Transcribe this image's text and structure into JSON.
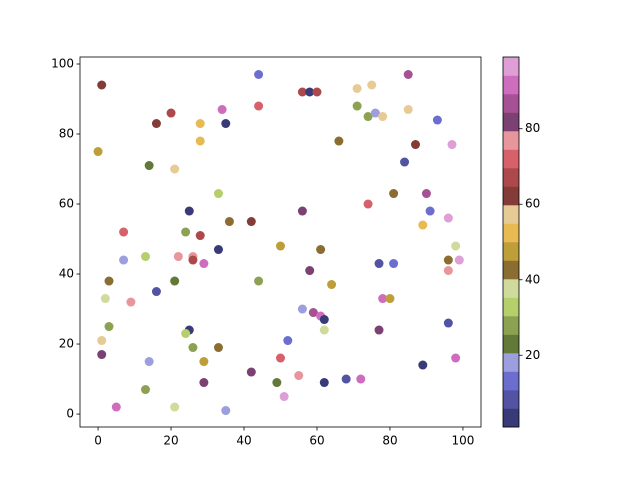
{
  "chart_data": {
    "type": "scatter",
    "x": [
      1,
      44,
      85,
      56,
      58,
      60,
      71,
      75,
      20,
      16,
      28,
      34,
      35,
      44,
      71,
      74,
      76,
      78,
      85,
      93,
      0,
      14,
      21,
      28,
      66,
      84,
      87,
      97,
      33,
      25,
      36,
      42,
      56,
      74,
      81,
      90,
      91,
      89,
      96,
      7,
      24,
      28,
      33,
      50,
      61,
      7,
      13,
      22,
      26,
      26,
      29,
      3,
      21,
      44,
      58,
      64,
      77,
      81,
      78,
      80,
      96,
      96,
      98,
      99,
      2,
      9,
      16,
      3,
      1,
      25,
      24,
      26,
      33,
      29,
      52,
      56,
      59,
      61,
      62,
      62,
      77,
      96,
      1,
      14,
      50,
      89,
      98,
      42,
      55,
      49,
      29,
      13,
      62,
      68,
      72,
      5,
      21,
      35,
      51
    ],
    "y": [
      94,
      97,
      97,
      92,
      92,
      92,
      93,
      94,
      86,
      83,
      83,
      87,
      83,
      88,
      88,
      85,
      86,
      85,
      87,
      84,
      75,
      71,
      70,
      78,
      78,
      72,
      77,
      77,
      63,
      58,
      55,
      55,
      58,
      60,
      63,
      63,
      58,
      54,
      56,
      52,
      52,
      51,
      47,
      48,
      47,
      44,
      45,
      45,
      45,
      44,
      43,
      38,
      38,
      38,
      41,
      37,
      43,
      43,
      33,
      33,
      44,
      41,
      48,
      44,
      33,
      32,
      35,
      25,
      21,
      24,
      23,
      19,
      19,
      15,
      21,
      30,
      29,
      28,
      27,
      24,
      24,
      26,
      17,
      15,
      16,
      14,
      16,
      12,
      11,
      9,
      9,
      7,
      9,
      10,
      10,
      2,
      2,
      1,
      5
    ],
    "c": [
      62,
      13,
      87,
      67,
      3,
      67,
      57,
      57,
      67,
      62,
      53,
      92,
      3,
      72,
      28,
      28,
      18,
      57,
      57,
      13,
      48,
      23,
      57,
      53,
      43,
      8,
      62,
      97,
      33,
      3,
      43,
      62,
      82,
      72,
      43,
      87,
      13,
      53,
      97,
      72,
      28,
      67,
      3,
      48,
      43,
      18,
      33,
      77,
      77,
      67,
      92,
      43,
      23,
      28,
      82,
      48,
      8,
      13,
      92,
      48,
      43,
      77,
      38,
      97,
      38,
      77,
      8,
      28,
      57,
      3,
      33,
      28,
      43,
      48,
      13,
      18,
      87,
      92,
      3,
      38,
      82,
      8,
      82,
      18,
      72,
      3,
      92,
      82,
      77,
      23,
      82,
      28,
      3,
      8,
      92,
      92,
      38,
      18,
      97
    ],
    "colormap": [
      "#393b79",
      "#5254a3",
      "#6b6ecf",
      "#9c9ede",
      "#637939",
      "#8ca252",
      "#b5cf6b",
      "#cedb9c",
      "#8c6d31",
      "#bd9e39",
      "#e7ba52",
      "#e7cb94",
      "#843c39",
      "#ad494a",
      "#d6616b",
      "#e7969c",
      "#7b4173",
      "#a55194",
      "#ce6dbd",
      "#de9ed6"
    ],
    "xlim": [
      -4.95,
      104.95
    ],
    "ylim": [
      -3.7,
      102
    ],
    "xticks": [
      0,
      20,
      40,
      60,
      80,
      100
    ],
    "yticks": [
      0,
      20,
      40,
      60,
      80,
      100
    ],
    "clim": [
      1,
      99
    ],
    "cticks": [
      20,
      40,
      60,
      80
    ]
  }
}
